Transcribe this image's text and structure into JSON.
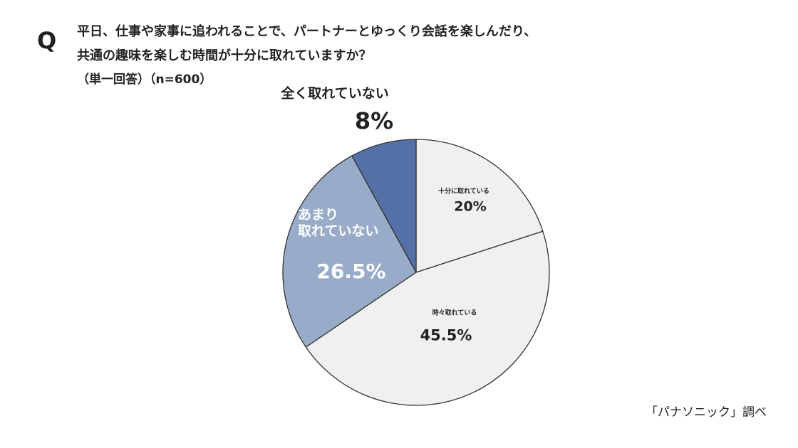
{
  "chart_data": {
    "type": "pie",
    "question_mark": "Q",
    "title_lines": [
      "平日、仕事や家事に追われることで、パートナーとゆっくり会話を楽しんだり、",
      "共通の趣味を楽しむ時間が十分に取れていますか？"
    ],
    "subtitle": "（単一回答）（n=600）",
    "categories": [
      "十分に取れている",
      "時々取れている",
      "あまり\n取れていない",
      "全く取れていない"
    ],
    "values": [
      20,
      45.5,
      26.5,
      8
    ],
    "value_labels": [
      "20%",
      "45.5%",
      "26.5%",
      "8%"
    ],
    "colors": [
      "#f0f0f2",
      "#f0f0f2",
      "#98abc9",
      "#5470a6"
    ],
    "source": "「パナソニック」調べ"
  }
}
